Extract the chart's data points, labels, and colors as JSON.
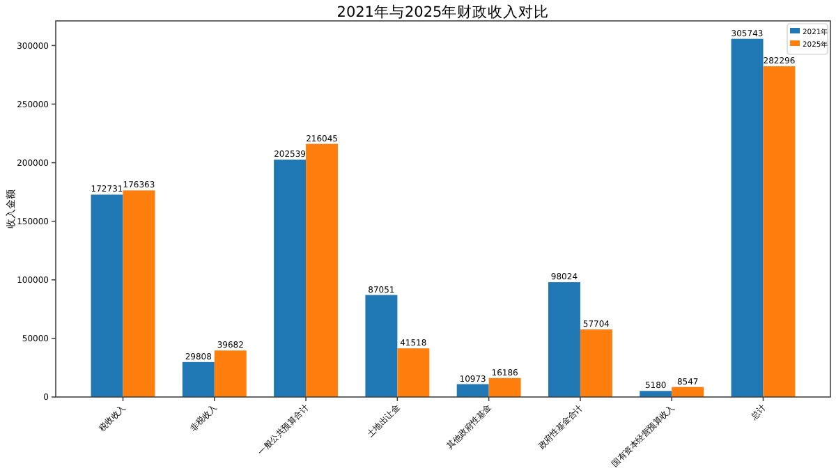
{
  "chart_data": {
    "type": "bar",
    "title": "2021年与2025年财政收入对比",
    "ylabel": "收入金额",
    "categories": [
      "税收收入",
      "非税收入",
      "一般公共预算合计",
      "土地出让金",
      "其他政府性基金",
      "政府性基金合计",
      "国有资本经营预算收入",
      "总计"
    ],
    "series": [
      {
        "name": "2021年",
        "color": "#1f77b4",
        "values": [
          172731,
          29808,
          202539,
          87051,
          10973,
          98024,
          5180,
          305743
        ]
      },
      {
        "name": "2025年",
        "color": "#ff7f0e",
        "values": [
          176363,
          39682,
          216045,
          41518,
          16186,
          57704,
          8547,
          282296
        ]
      }
    ],
    "ylim": [
      0,
      321030
    ],
    "yticks": [
      0,
      50000,
      100000,
      150000,
      200000,
      250000,
      300000
    ],
    "data_labels": true,
    "legend": "top right",
    "grid": false
  }
}
